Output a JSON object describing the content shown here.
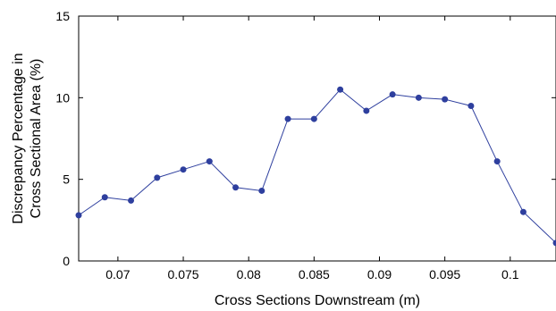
{
  "chart_data": {
    "type": "line",
    "title": "",
    "xlabel": "Cross Sections Downstream (m)",
    "ylabel": [
      "Discrepancy Percentage in",
      "Cross Sectional Area (%)"
    ],
    "xlim": [
      0.067,
      0.1035
    ],
    "ylim": [
      0,
      15
    ],
    "xticks": [
      0.07,
      0.075,
      0.08,
      0.085,
      0.09,
      0.095,
      0.1
    ],
    "xtick_labels": [
      "0.07",
      "0.075",
      "0.08",
      "0.085",
      "0.09",
      "0.095",
      "0.1"
    ],
    "yticks": [
      0,
      5,
      10,
      15
    ],
    "ytick_labels": [
      "0",
      "5",
      "10",
      "15"
    ],
    "grid": false,
    "legend": "none",
    "series": [
      {
        "color": "#2e3f9e",
        "marker": "circle",
        "x": [
          0.067,
          0.069,
          0.071,
          0.073,
          0.075,
          0.077,
          0.079,
          0.081,
          0.083,
          0.085,
          0.087,
          0.089,
          0.091,
          0.093,
          0.095,
          0.097,
          0.099,
          0.101,
          0.1035
        ],
        "y": [
          2.8,
          3.9,
          3.7,
          5.1,
          5.6,
          6.1,
          4.5,
          4.3,
          8.7,
          8.7,
          10.5,
          9.2,
          10.2,
          10.0,
          9.9,
          9.5,
          6.1,
          3.0,
          1.1
        ]
      }
    ]
  }
}
